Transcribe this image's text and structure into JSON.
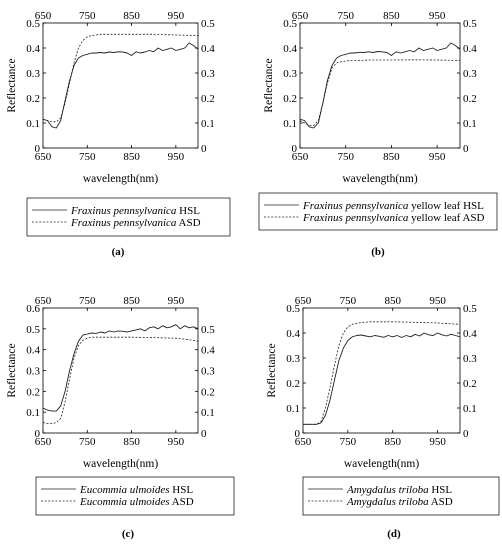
{
  "chart_data": [
    {
      "type": "line",
      "panel": "a",
      "caption": "(a)",
      "xlabel": "wavelength(nm)",
      "ylabel": "Reflectance",
      "xlim": [
        650,
        1000
      ],
      "ylim": [
        0,
        0.5
      ],
      "xticks": [
        650,
        750,
        850,
        950
      ],
      "xticks_top": [
        650,
        750,
        850,
        950
      ],
      "yticks": [
        0.0,
        0.1,
        0.2,
        0.3,
        0.4,
        0.5
      ],
      "yticks_right": [
        0.0,
        0.1,
        0.2,
        0.3,
        0.4,
        0.5
      ],
      "legend_position": "below",
      "series": [
        {
          "name_italic": "Fraxinus pennsylvanica",
          "name_rest": " HSL",
          "style": "solid",
          "x": [
            650,
            660,
            670,
            680,
            690,
            700,
            710,
            720,
            730,
            740,
            750,
            760,
            770,
            780,
            790,
            800,
            810,
            820,
            830,
            840,
            850,
            860,
            870,
            880,
            890,
            900,
            910,
            920,
            930,
            940,
            950,
            960,
            970,
            980,
            990,
            1000
          ],
          "y": [
            0.115,
            0.11,
            0.085,
            0.08,
            0.11,
            0.19,
            0.27,
            0.33,
            0.36,
            0.37,
            0.375,
            0.38,
            0.38,
            0.382,
            0.38,
            0.384,
            0.382,
            0.385,
            0.384,
            0.38,
            0.37,
            0.385,
            0.38,
            0.384,
            0.39,
            0.385,
            0.4,
            0.39,
            0.395,
            0.4,
            0.39,
            0.395,
            0.4,
            0.42,
            0.41,
            0.395
          ]
        },
        {
          "name_italic": "Fraxinus pennsylvanica",
          "name_rest": " ASD",
          "style": "dashed",
          "x": [
            650,
            660,
            670,
            680,
            690,
            700,
            710,
            720,
            730,
            740,
            750,
            760,
            770,
            780,
            800,
            850,
            900,
            950,
            1000
          ],
          "y": [
            0.115,
            0.11,
            0.105,
            0.105,
            0.12,
            0.18,
            0.26,
            0.34,
            0.4,
            0.43,
            0.445,
            0.45,
            0.452,
            0.455,
            0.455,
            0.455,
            0.455,
            0.452,
            0.45
          ]
        }
      ]
    },
    {
      "type": "line",
      "panel": "b",
      "caption": "(b)",
      "xlabel": "wavelength(nm)",
      "ylabel": "Reflectance",
      "xlim": [
        650,
        1000
      ],
      "ylim": [
        0,
        0.5
      ],
      "xticks": [
        650,
        750,
        850,
        950
      ],
      "xticks_top": [
        650,
        750,
        850,
        950
      ],
      "yticks": [
        0.0,
        0.1,
        0.2,
        0.3,
        0.4,
        0.5
      ],
      "yticks_right": [
        0.0,
        0.1,
        0.2,
        0.3,
        0.4,
        0.5
      ],
      "legend_position": "below",
      "series": [
        {
          "name_italic": "Fraxinus pennsylvanica",
          "name_rest": " yellow leaf HSL",
          "style": "solid",
          "x": [
            650,
            660,
            670,
            680,
            690,
            700,
            710,
            720,
            730,
            740,
            750,
            760,
            770,
            780,
            790,
            800,
            810,
            820,
            830,
            840,
            850,
            860,
            870,
            880,
            890,
            900,
            910,
            920,
            930,
            940,
            950,
            960,
            970,
            980,
            990,
            1000
          ],
          "y": [
            0.115,
            0.11,
            0.085,
            0.08,
            0.1,
            0.18,
            0.27,
            0.33,
            0.36,
            0.37,
            0.375,
            0.38,
            0.38,
            0.383,
            0.382,
            0.385,
            0.382,
            0.386,
            0.385,
            0.382,
            0.37,
            0.385,
            0.38,
            0.385,
            0.39,
            0.385,
            0.4,
            0.39,
            0.395,
            0.4,
            0.39,
            0.395,
            0.4,
            0.42,
            0.41,
            0.395
          ]
        },
        {
          "name_italic": "Fraxinus pennsylvanica",
          "name_rest": " yellow leaf ASD",
          "style": "dashed",
          "x": [
            650,
            660,
            670,
            680,
            690,
            700,
            710,
            720,
            730,
            740,
            750,
            760,
            780,
            800,
            850,
            900,
            950,
            1000
          ],
          "y": [
            0.11,
            0.1,
            0.09,
            0.09,
            0.11,
            0.18,
            0.26,
            0.32,
            0.34,
            0.345,
            0.348,
            0.35,
            0.35,
            0.352,
            0.352,
            0.353,
            0.352,
            0.35
          ]
        }
      ]
    },
    {
      "type": "line",
      "panel": "c",
      "caption": "(c)",
      "xlabel": "wavelength(nm)",
      "ylabel": "Reflectance",
      "xlim": [
        650,
        1000
      ],
      "ylim": [
        0,
        0.6
      ],
      "xticks": [
        650,
        750,
        850,
        950
      ],
      "xticks_top": [
        650,
        750,
        850,
        950
      ],
      "yticks": [
        0.0,
        0.1,
        0.2,
        0.3,
        0.4,
        0.5,
        0.6
      ],
      "yticks_right": [
        0.0,
        0.1,
        0.2,
        0.3,
        0.4,
        0.5
      ],
      "legend_position": "below",
      "series": [
        {
          "name_italic": "Eucommia ulmoides",
          "name_rest": " HSL",
          "style": "solid",
          "x": [
            650,
            660,
            670,
            680,
            690,
            700,
            710,
            720,
            730,
            740,
            750,
            760,
            770,
            780,
            790,
            800,
            810,
            820,
            830,
            840,
            850,
            860,
            870,
            880,
            890,
            900,
            910,
            920,
            930,
            940,
            950,
            960,
            970,
            980,
            990,
            1000
          ],
          "y": [
            0.12,
            0.11,
            0.105,
            0.105,
            0.13,
            0.2,
            0.3,
            0.38,
            0.44,
            0.47,
            0.475,
            0.48,
            0.478,
            0.485,
            0.48,
            0.49,
            0.485,
            0.49,
            0.488,
            0.485,
            0.49,
            0.495,
            0.5,
            0.49,
            0.505,
            0.51,
            0.5,
            0.515,
            0.505,
            0.51,
            0.52,
            0.5,
            0.515,
            0.505,
            0.51,
            0.5
          ]
        },
        {
          "name_italic": "Eucommia ulmoides",
          "name_rest": " ASD",
          "style": "dashed",
          "x": [
            650,
            660,
            670,
            680,
            690,
            700,
            710,
            720,
            730,
            740,
            750,
            760,
            780,
            800,
            850,
            900,
            950,
            980,
            1000
          ],
          "y": [
            0.05,
            0.045,
            0.045,
            0.05,
            0.07,
            0.15,
            0.26,
            0.36,
            0.42,
            0.445,
            0.455,
            0.46,
            0.46,
            0.46,
            0.46,
            0.458,
            0.455,
            0.448,
            0.44
          ]
        }
      ]
    },
    {
      "type": "line",
      "panel": "d",
      "caption": "(d)",
      "xlabel": "wavelength(nm)",
      "ylabel": "Reflectance",
      "xlim": [
        650,
        1000
      ],
      "ylim": [
        0,
        0.5
      ],
      "xticks": [
        650,
        750,
        850,
        950
      ],
      "xticks_top": [
        650,
        750,
        850,
        950
      ],
      "yticks": [
        0.0,
        0.1,
        0.2,
        0.3,
        0.4,
        0.5
      ],
      "yticks_right": [
        0.0,
        0.1,
        0.2,
        0.3,
        0.4,
        0.5
      ],
      "legend_position": "below",
      "series": [
        {
          "name_italic": "Amygdalus triloba",
          "name_rest": " HSL",
          "style": "solid",
          "x": [
            650,
            660,
            670,
            680,
            690,
            700,
            710,
            720,
            730,
            740,
            750,
            760,
            770,
            780,
            790,
            800,
            810,
            820,
            830,
            840,
            850,
            860,
            870,
            880,
            890,
            900,
            910,
            920,
            930,
            940,
            950,
            960,
            970,
            980,
            990,
            1000
          ],
          "y": [
            0.035,
            0.035,
            0.035,
            0.035,
            0.04,
            0.07,
            0.13,
            0.21,
            0.29,
            0.34,
            0.37,
            0.385,
            0.39,
            0.392,
            0.388,
            0.385,
            0.39,
            0.387,
            0.383,
            0.39,
            0.385,
            0.39,
            0.382,
            0.39,
            0.385,
            0.395,
            0.388,
            0.4,
            0.393,
            0.39,
            0.4,
            0.393,
            0.388,
            0.395,
            0.39,
            0.385
          ]
        },
        {
          "name_italic": "Amygdalus triloba",
          "name_rest": " ASD",
          "style": "dashed",
          "x": [
            650,
            660,
            670,
            680,
            690,
            700,
            710,
            720,
            730,
            740,
            750,
            760,
            780,
            800,
            850,
            900,
            950,
            1000
          ],
          "y": [
            0.035,
            0.035,
            0.035,
            0.035,
            0.045,
            0.1,
            0.18,
            0.27,
            0.35,
            0.4,
            0.425,
            0.435,
            0.442,
            0.445,
            0.445,
            0.443,
            0.44,
            0.435
          ]
        }
      ]
    }
  ]
}
